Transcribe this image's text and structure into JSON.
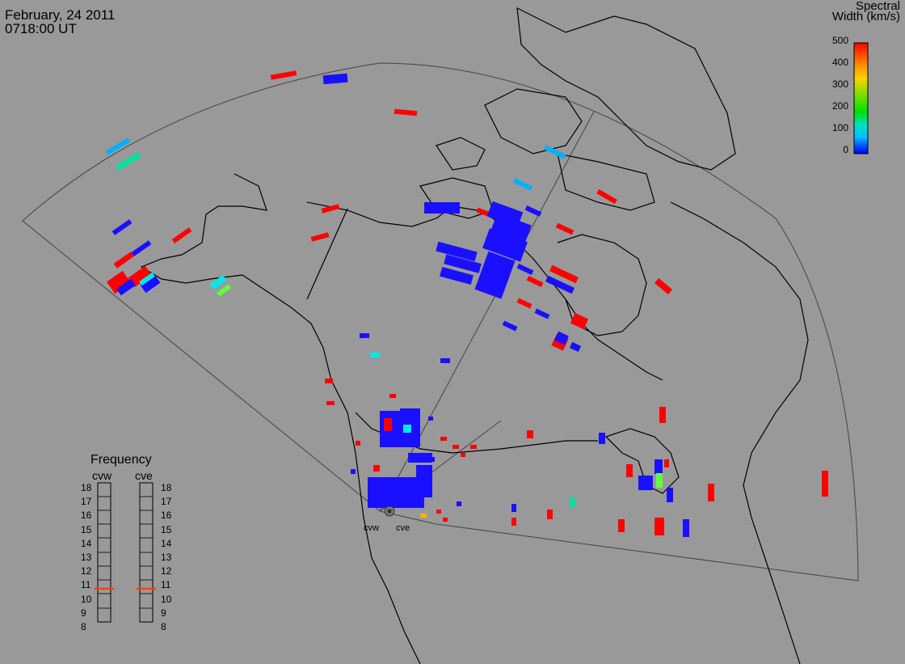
{
  "header": {
    "date": "February, 24 2011",
    "time": "0718:00 UT"
  },
  "colorbar": {
    "title_line1": "Spectral",
    "title_line2": "Width (km/s)",
    "ticks": [
      "500",
      "400",
      "300",
      "200",
      "100",
      "0"
    ],
    "colors": [
      "#ff0000",
      "#ff8000",
      "#ffd000",
      "#60e000",
      "#00e000",
      "#00e0c0",
      "#00c0ff",
      "#0050ff",
      "#0000ff"
    ]
  },
  "frequency": {
    "title": "Frequency",
    "radars": [
      {
        "name": "cvw",
        "value_mhz": 10.8
      },
      {
        "name": "cve",
        "value_mhz": 10.8
      }
    ],
    "scale": [
      "18",
      "17",
      "16",
      "15",
      "14",
      "13",
      "12",
      "11",
      "10",
      "9",
      "8"
    ]
  },
  "sites": [
    {
      "name": "cvw"
    },
    {
      "name": "cve"
    }
  ],
  "palette": {
    "background": "#999999",
    "coast": "#000000",
    "fov": "#333333",
    "red": "#ff0000",
    "blue": "#1a10ff",
    "cyan": "#00e8e8",
    "aqua": "#00b0ff",
    "mint": "#00e0a0",
    "green": "#60ff40",
    "yellow": "#ffb000"
  }
}
